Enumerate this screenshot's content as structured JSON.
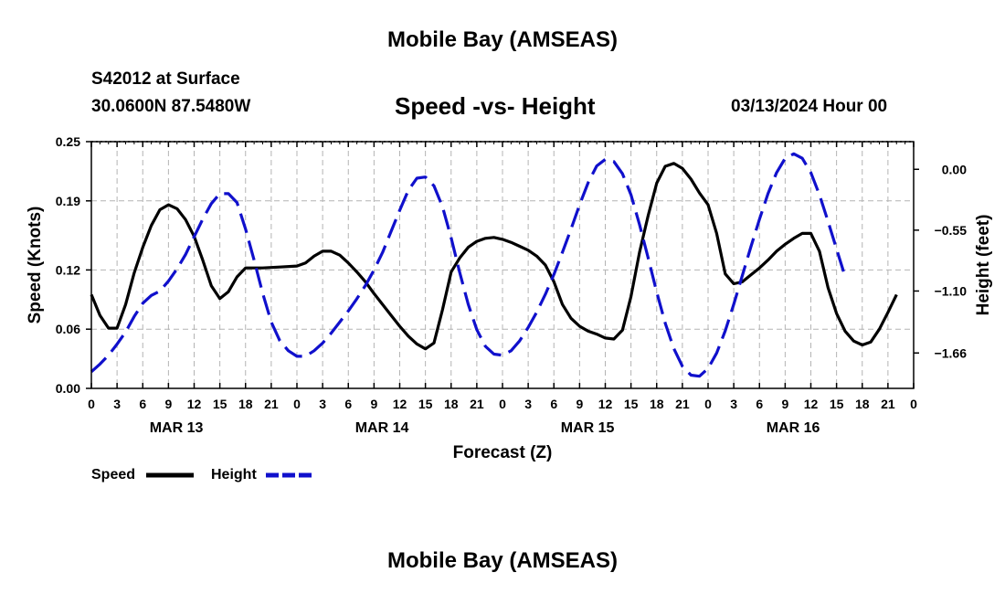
{
  "header": {
    "title": "Mobile Bay (AMSEAS)",
    "station": "S42012 at Surface",
    "coords": "30.0600N  87.5480W",
    "subtitle": "Speed -vs- Height",
    "datetime": "03/13/2024 Hour 00"
  },
  "footer": {
    "title": "Mobile Bay (AMSEAS)"
  },
  "chart_data": {
    "type": "line",
    "title": "Speed -vs- Height",
    "xlabel": "Forecast (Z)",
    "ylabel": "Speed (Knots)",
    "y2label": "Height (feet)",
    "xlim": [
      0,
      96
    ],
    "ylim": [
      0,
      0.25
    ],
    "y2lim": [
      -1.98,
      0.25
    ],
    "x_tick_step": 3,
    "x_tick_labels": [
      "0",
      "3",
      "6",
      "9",
      "12",
      "15",
      "18",
      "21",
      "0",
      "3",
      "6",
      "9",
      "12",
      "15",
      "18",
      "21",
      "0",
      "3",
      "6",
      "9",
      "12",
      "15",
      "18",
      "21",
      "0",
      "3",
      "6",
      "9",
      "12",
      "15",
      "18",
      "21",
      "0"
    ],
    "y_ticks": [
      0.0,
      0.06,
      0.12,
      0.19,
      0.25
    ],
    "y_tick_labels": [
      "0.00",
      "0.06",
      "0.12",
      "0.19",
      "0.25"
    ],
    "y2_ticks": [
      -1.66,
      -1.1,
      -0.55,
      0.0
    ],
    "y2_tick_labels": [
      "−1.66",
      "−1.10",
      "−0.55",
      "0.00"
    ],
    "day_labels": [
      {
        "text": "MAR 13",
        "x": 9.5
      },
      {
        "text": "MAR 14",
        "x": 33.5
      },
      {
        "text": "MAR 15",
        "x": 57.5
      },
      {
        "text": "MAR 16",
        "x": 81.5
      }
    ],
    "grid": true,
    "legend_position": "bottom-left",
    "series": [
      {
        "name": "Speed",
        "axis": "left",
        "color": "#000000",
        "style": "solid",
        "points": [
          [
            0,
            0.095
          ],
          [
            1,
            0.074
          ],
          [
            2,
            0.061
          ],
          [
            3,
            0.061
          ],
          [
            4,
            0.085
          ],
          [
            5,
            0.117
          ],
          [
            6,
            0.143
          ],
          [
            7,
            0.165
          ],
          [
            8,
            0.181
          ],
          [
            9,
            0.186
          ],
          [
            10,
            0.182
          ],
          [
            11,
            0.171
          ],
          [
            12,
            0.154
          ],
          [
            13,
            0.13
          ],
          [
            14,
            0.104
          ],
          [
            15,
            0.091
          ],
          [
            16,
            0.098
          ],
          [
            17,
            0.113
          ],
          [
            18,
            0.122
          ],
          [
            20,
            0.122
          ],
          [
            22,
            0.123
          ],
          [
            24,
            0.124
          ],
          [
            25,
            0.127
          ],
          [
            26,
            0.134
          ],
          [
            27,
            0.139
          ],
          [
            28,
            0.139
          ],
          [
            29,
            0.135
          ],
          [
            30,
            0.127
          ],
          [
            31,
            0.118
          ],
          [
            32,
            0.108
          ],
          [
            33,
            0.096
          ],
          [
            34,
            0.085
          ],
          [
            35,
            0.074
          ],
          [
            36,
            0.063
          ],
          [
            37,
            0.053
          ],
          [
            38,
            0.045
          ],
          [
            39,
            0.04
          ],
          [
            40,
            0.046
          ],
          [
            41,
            0.08
          ],
          [
            42,
            0.118
          ],
          [
            43,
            0.132
          ],
          [
            44,
            0.143
          ],
          [
            45,
            0.149
          ],
          [
            46,
            0.152
          ],
          [
            47,
            0.153
          ],
          [
            48,
            0.151
          ],
          [
            49,
            0.148
          ],
          [
            50,
            0.144
          ],
          [
            51,
            0.14
          ],
          [
            52,
            0.134
          ],
          [
            53,
            0.125
          ],
          [
            54,
            0.108
          ],
          [
            55,
            0.085
          ],
          [
            56,
            0.071
          ],
          [
            57,
            0.063
          ],
          [
            58,
            0.058
          ],
          [
            59,
            0.055
          ],
          [
            60,
            0.051
          ],
          [
            61,
            0.05
          ],
          [
            62,
            0.059
          ],
          [
            63,
            0.093
          ],
          [
            64,
            0.138
          ],
          [
            65,
            0.175
          ],
          [
            66,
            0.208
          ],
          [
            67,
            0.225
          ],
          [
            68,
            0.228
          ],
          [
            69,
            0.223
          ],
          [
            70,
            0.212
          ],
          [
            71,
            0.198
          ],
          [
            72,
            0.186
          ],
          [
            73,
            0.157
          ],
          [
            74,
            0.116
          ],
          [
            75,
            0.106
          ],
          [
            76,
            0.108
          ],
          [
            77,
            0.115
          ],
          [
            78,
            0.122
          ],
          [
            79,
            0.13
          ],
          [
            80,
            0.139
          ],
          [
            81,
            0.146
          ],
          [
            82,
            0.152
          ],
          [
            83,
            0.157
          ],
          [
            84,
            0.157
          ],
          [
            85,
            0.139
          ],
          [
            86,
            0.102
          ],
          [
            87,
            0.076
          ],
          [
            88,
            0.058
          ],
          [
            89,
            0.048
          ],
          [
            90,
            0.044
          ],
          [
            91,
            0.047
          ],
          [
            92,
            0.06
          ],
          [
            93,
            0.077
          ],
          [
            94,
            0.095
          ]
        ]
      },
      {
        "name": "Height",
        "axis": "right",
        "color": "#1010cc",
        "style": "dashed",
        "points": [
          [
            0,
            -1.83
          ],
          [
            1,
            -1.76
          ],
          [
            2,
            -1.68
          ],
          [
            3,
            -1.58
          ],
          [
            4,
            -1.47
          ],
          [
            5,
            -1.33
          ],
          [
            6,
            -1.21
          ],
          [
            7,
            -1.14
          ],
          [
            8,
            -1.1
          ],
          [
            9,
            -1.01
          ],
          [
            10,
            -0.9
          ],
          [
            11,
            -0.77
          ],
          [
            12,
            -0.61
          ],
          [
            13,
            -0.45
          ],
          [
            14,
            -0.31
          ],
          [
            15,
            -0.22
          ],
          [
            16,
            -0.22
          ],
          [
            17,
            -0.3
          ],
          [
            18,
            -0.54
          ],
          [
            19,
            -0.82
          ],
          [
            20,
            -1.12
          ],
          [
            21,
            -1.38
          ],
          [
            22,
            -1.55
          ],
          [
            23,
            -1.64
          ],
          [
            24,
            -1.69
          ],
          [
            25,
            -1.69
          ],
          [
            26,
            -1.64
          ],
          [
            27,
            -1.57
          ],
          [
            28,
            -1.48
          ],
          [
            29,
            -1.38
          ],
          [
            30,
            -1.28
          ],
          [
            31,
            -1.17
          ],
          [
            32,
            -1.05
          ],
          [
            33,
            -0.91
          ],
          [
            34,
            -0.75
          ],
          [
            35,
            -0.56
          ],
          [
            36,
            -0.37
          ],
          [
            37,
            -0.19
          ],
          [
            38,
            -0.08
          ],
          [
            39,
            -0.07
          ],
          [
            40,
            -0.15
          ],
          [
            41,
            -0.34
          ],
          [
            42,
            -0.62
          ],
          [
            43,
            -0.93
          ],
          [
            44,
            -1.22
          ],
          [
            45,
            -1.45
          ],
          [
            46,
            -1.6
          ],
          [
            47,
            -1.67
          ],
          [
            48,
            -1.68
          ],
          [
            49,
            -1.64
          ],
          [
            50,
            -1.55
          ],
          [
            51,
            -1.43
          ],
          [
            52,
            -1.29
          ],
          [
            53,
            -1.13
          ],
          [
            54,
            -0.95
          ],
          [
            55,
            -0.75
          ],
          [
            56,
            -0.54
          ],
          [
            57,
            -0.32
          ],
          [
            58,
            -0.12
          ],
          [
            59,
            0.03
          ],
          [
            60,
            0.09
          ],
          [
            61,
            0.07
          ],
          [
            62,
            -0.04
          ],
          [
            63,
            -0.23
          ],
          [
            64,
            -0.5
          ],
          [
            65,
            -0.8
          ],
          [
            66,
            -1.11
          ],
          [
            67,
            -1.39
          ],
          [
            68,
            -1.62
          ],
          [
            69,
            -1.78
          ],
          [
            70,
            -1.86
          ],
          [
            71,
            -1.87
          ],
          [
            72,
            -1.8
          ],
          [
            73,
            -1.66
          ],
          [
            74,
            -1.46
          ],
          [
            75,
            -1.22
          ],
          [
            76,
            -0.96
          ],
          [
            77,
            -0.7
          ],
          [
            78,
            -0.45
          ],
          [
            79,
            -0.22
          ],
          [
            80,
            -0.03
          ],
          [
            81,
            0.1
          ],
          [
            82,
            0.14
          ],
          [
            83,
            0.1
          ],
          [
            84,
            -0.03
          ],
          [
            85,
            -0.23
          ],
          [
            86,
            -0.47
          ],
          [
            87,
            -0.72
          ],
          [
            88,
            -0.97
          ]
        ]
      }
    ]
  }
}
